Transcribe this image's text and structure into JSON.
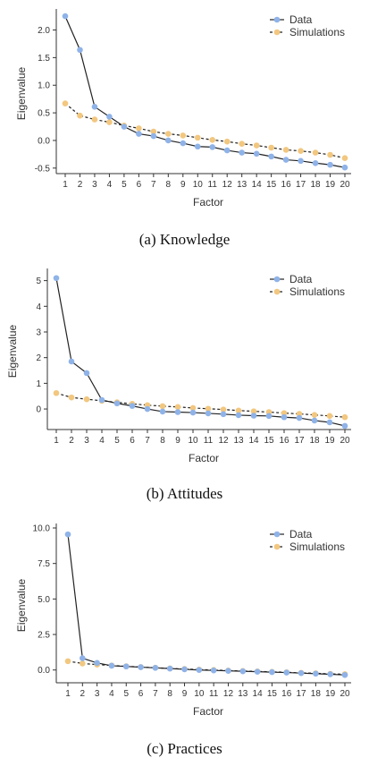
{
  "chart_data": [
    {
      "type": "line",
      "title": "",
      "xlabel": "Factor",
      "ylabel": "Eigenvalue",
      "x": [
        1,
        2,
        3,
        4,
        5,
        6,
        7,
        8,
        9,
        10,
        11,
        12,
        13,
        14,
        15,
        16,
        17,
        18,
        19,
        20
      ],
      "x_ticks": [
        "1",
        "2",
        "3",
        "4",
        "5",
        "6",
        "7",
        "8",
        "9",
        "10",
        "11",
        "12",
        "13",
        "14",
        "15",
        "16",
        "17",
        "18",
        "19",
        "20"
      ],
      "ylim": [
        -0.6,
        2.3
      ],
      "y_ticks": [
        -0.5,
        0.0,
        0.5,
        1.0,
        1.5,
        2.0
      ],
      "y_tick_labels": [
        "-0.5",
        "0.0",
        "0.5",
        "1.0",
        "1.5",
        "2.0"
      ],
      "legend_position": "top-right",
      "series": [
        {
          "name": "Data",
          "style": "solid",
          "color": "#8fb3e8",
          "values": [
            2.25,
            1.64,
            0.61,
            0.43,
            0.25,
            0.12,
            0.08,
            0.0,
            -0.05,
            -0.11,
            -0.12,
            -0.18,
            -0.22,
            -0.24,
            -0.29,
            -0.35,
            -0.37,
            -0.41,
            -0.44,
            -0.49
          ]
        },
        {
          "name": "Simulations",
          "style": "dashed",
          "color": "#f2c77f",
          "values": [
            0.67,
            0.45,
            0.38,
            0.33,
            0.27,
            0.22,
            0.16,
            0.12,
            0.09,
            0.05,
            0.01,
            -0.02,
            -0.06,
            -0.09,
            -0.13,
            -0.17,
            -0.19,
            -0.22,
            -0.26,
            -0.32
          ]
        }
      ],
      "caption": "(a) Knowledge"
    },
    {
      "type": "line",
      "title": "",
      "xlabel": "Factor",
      "ylabel": "Eigenvalue",
      "x": [
        1,
        2,
        3,
        4,
        5,
        6,
        7,
        8,
        9,
        10,
        11,
        12,
        13,
        14,
        15,
        16,
        17,
        18,
        19,
        20
      ],
      "x_ticks": [
        "1",
        "2",
        "3",
        "4",
        "5",
        "6",
        "7",
        "8",
        "9",
        "10",
        "11",
        "12",
        "13",
        "14",
        "15",
        "16",
        "17",
        "18",
        "19",
        "20"
      ],
      "ylim": [
        -0.8,
        5.3
      ],
      "y_ticks": [
        0,
        1,
        2,
        3,
        4,
        5
      ],
      "y_tick_labels": [
        "0",
        "1",
        "2",
        "3",
        "4",
        "5"
      ],
      "legend_position": "top-right",
      "series": [
        {
          "name": "Data",
          "style": "solid",
          "color": "#8fb3e8",
          "values": [
            5.1,
            1.85,
            1.4,
            0.35,
            0.22,
            0.12,
            0.0,
            -0.1,
            -0.12,
            -0.14,
            -0.17,
            -0.2,
            -0.24,
            -0.26,
            -0.27,
            -0.32,
            -0.35,
            -0.45,
            -0.52,
            -0.66
          ]
        },
        {
          "name": "Simulations",
          "style": "dashed",
          "color": "#f2c77f",
          "values": [
            0.62,
            0.45,
            0.38,
            0.32,
            0.26,
            0.2,
            0.15,
            0.11,
            0.08,
            0.04,
            0.01,
            -0.02,
            -0.06,
            -0.09,
            -0.12,
            -0.16,
            -0.19,
            -0.23,
            -0.27,
            -0.32
          ]
        }
      ],
      "caption": "(b) Attitudes"
    },
    {
      "type": "line",
      "title": "",
      "xlabel": "Factor",
      "ylabel": "Eigenvalue",
      "x": [
        1,
        2,
        3,
        4,
        5,
        6,
        7,
        8,
        9,
        10,
        11,
        12,
        13,
        14,
        15,
        16,
        17,
        18,
        19,
        20
      ],
      "x_ticks": [
        "1",
        "2",
        "3",
        "4",
        "5",
        "6",
        "7",
        "8",
        "9",
        "10",
        "11",
        "12",
        "13",
        "14",
        "15",
        "16",
        "17",
        "18",
        "19",
        "20"
      ],
      "ylim": [
        -0.9,
        10.0
      ],
      "y_ticks": [
        0.0,
        2.5,
        5.0,
        7.5,
        10.0
      ],
      "y_tick_labels": [
        "0.0",
        "2.5",
        "5.0",
        "7.5",
        "10.0"
      ],
      "legend_position": "top-right",
      "series": [
        {
          "name": "Data",
          "style": "solid",
          "color": "#8fb3e8",
          "values": [
            9.55,
            0.83,
            0.5,
            0.3,
            0.25,
            0.2,
            0.15,
            0.1,
            0.05,
            0.0,
            -0.03,
            -0.06,
            -0.09,
            -0.12,
            -0.15,
            -0.18,
            -0.22,
            -0.26,
            -0.3,
            -0.35
          ]
        },
        {
          "name": "Simulations",
          "style": "dashed",
          "color": "#f2c77f",
          "values": [
            0.62,
            0.46,
            0.38,
            0.32,
            0.26,
            0.21,
            0.16,
            0.11,
            0.07,
            0.03,
            0.0,
            -0.04,
            -0.07,
            -0.1,
            -0.13,
            -0.16,
            -0.2,
            -0.23,
            -0.27,
            -0.3
          ]
        }
      ],
      "caption": "(c) Practices"
    }
  ]
}
